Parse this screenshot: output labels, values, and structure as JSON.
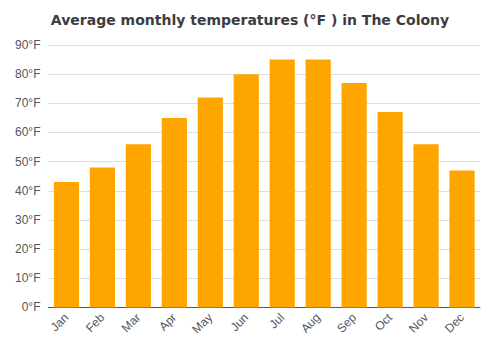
{
  "chart_data": {
    "type": "bar",
    "title": "Average monthly temperatures (°F ) in The Colony",
    "categories": [
      "Jan",
      "Feb",
      "Mar",
      "Apr",
      "May",
      "Jun",
      "Jul",
      "Aug",
      "Sep",
      "Oct",
      "Nov",
      "Dec"
    ],
    "values": [
      43,
      48,
      56,
      65,
      72,
      80,
      85,
      85,
      77,
      67,
      56,
      47
    ],
    "color": "#FFA500",
    "ylim": [
      0,
      90
    ],
    "yticks": [
      {
        "value": 0,
        "label": "0°F"
      },
      {
        "value": 10,
        "label": "10°F"
      },
      {
        "value": 20,
        "label": "20°F"
      },
      {
        "value": 30,
        "label": "30°F"
      },
      {
        "value": 40,
        "label": "40°F"
      },
      {
        "value": 50,
        "label": "50°F"
      },
      {
        "value": 60,
        "label": "60°F"
      },
      {
        "value": 70,
        "label": "70°F"
      },
      {
        "value": 80,
        "label": "80°F"
      },
      {
        "value": 90,
        "label": "90°F"
      }
    ],
    "grid": true
  }
}
